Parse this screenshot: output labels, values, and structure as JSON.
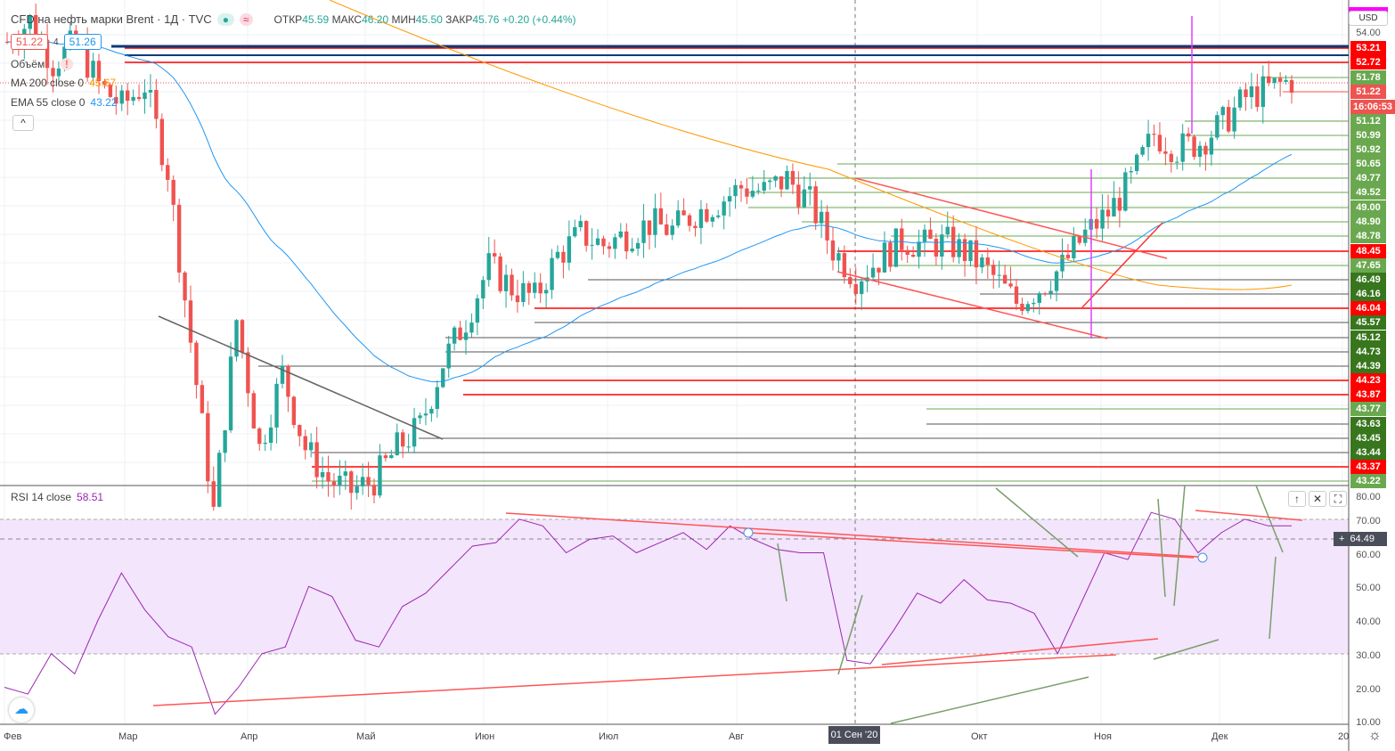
{
  "header": {
    "title": "CFD на нефть марки Brent · 1Д · TVC",
    "open_label": "ОТКР",
    "open": "45.59",
    "high_label": "МАКС",
    "high": "46.20",
    "low_label": "МИН",
    "low": "45.50",
    "close_label": "ЗАКР",
    "close": "45.76",
    "change": "+0.20 (+0.44%)",
    "sell": "51.22",
    "spread": "4",
    "buy": "51.26"
  },
  "legend": {
    "volume": "Объём",
    "volume_warning": "!",
    "ma_label": "MA 200 close 0",
    "ma_value": "45.67",
    "ema_label": "EMA 55 close 0",
    "ema_value": "43.22",
    "collapse": "^"
  },
  "rsi": {
    "label": "RSI 14 close",
    "value": "58.51",
    "current_marker": "64.49",
    "ticks": [
      "80.00",
      "70.00",
      "60.00",
      "50.00",
      "40.00",
      "30.00",
      "20.00",
      "10.00"
    ]
  },
  "price_axis": {
    "currency": "USD",
    "top_label": "54.00",
    "countdown": "16:06:53",
    "levels": [
      {
        "v": "53.21",
        "c": "#ff0000"
      },
      {
        "v": "52.72",
        "c": "#ff0000"
      },
      {
        "v": "51.78",
        "c": "#6aa84f"
      },
      {
        "v": "51.22",
        "c": "#ef5350"
      },
      {
        "v": "51.12",
        "c": "#6aa84f"
      },
      {
        "v": "50.99",
        "c": "#6aa84f"
      },
      {
        "v": "50.92",
        "c": "#6aa84f"
      },
      {
        "v": "50.65",
        "c": "#6aa84f"
      },
      {
        "v": "49.77",
        "c": "#6aa84f"
      },
      {
        "v": "49.52",
        "c": "#6aa84f"
      },
      {
        "v": "49.00",
        "c": "#6aa84f"
      },
      {
        "v": "48.90",
        "c": "#6aa84f"
      },
      {
        "v": "48.78",
        "c": "#6aa84f"
      },
      {
        "v": "48.45",
        "c": "#ff0000"
      },
      {
        "v": "47.65",
        "c": "#6aa84f"
      },
      {
        "v": "46.49",
        "c": "#38761d"
      },
      {
        "v": "46.16",
        "c": "#38761d"
      },
      {
        "v": "46.04",
        "c": "#ff0000"
      },
      {
        "v": "45.57",
        "c": "#38761d"
      },
      {
        "v": "45.12",
        "c": "#38761d"
      },
      {
        "v": "44.73",
        "c": "#38761d"
      },
      {
        "v": "44.39",
        "c": "#38761d"
      },
      {
        "v": "44.23",
        "c": "#ff0000"
      },
      {
        "v": "43.87",
        "c": "#ff0000"
      },
      {
        "v": "43.77",
        "c": "#6aa84f"
      },
      {
        "v": "43.63",
        "c": "#38761d"
      },
      {
        "v": "43.45",
        "c": "#38761d"
      },
      {
        "v": "43.44",
        "c": "#38761d"
      },
      {
        "v": "43.37",
        "c": "#ff0000"
      },
      {
        "v": "43.22",
        "c": "#6aa84f"
      }
    ]
  },
  "time_axis": {
    "labels": [
      "Фев",
      "Мар",
      "Апр",
      "Май",
      "Июн",
      "Июл",
      "Авг",
      "Окт",
      "Ноя",
      "Дек",
      "20"
    ],
    "crosshair": "01 Сен '20"
  },
  "colors": {
    "up": "#26a69a",
    "down": "#ef5350",
    "ma": "#ff9800",
    "ema": "#2196f3",
    "rsi": "#9c27b0"
  },
  "chart_data": {
    "type": "candlestick",
    "approx_closes": [
      52,
      53,
      51,
      52,
      50,
      49,
      50,
      46,
      38,
      30,
      39,
      33,
      36.5,
      33,
      31.5,
      31,
      31.5,
      33,
      34,
      37,
      39,
      41.5,
      40.5,
      40,
      42,
      43,
      42.5,
      43,
      43.5,
      43.2,
      44,
      44.5,
      45.2,
      45,
      45.6,
      44.5,
      42.3,
      41,
      41.8,
      42.7,
      42.5,
      42.6,
      42,
      41,
      39.8,
      40.5,
      41.5,
      43,
      44,
      45.5,
      47.7,
      47,
      47.3,
      48.2,
      49.4,
      49.8,
      50.2
    ],
    "rsi_values": [
      22,
      18,
      28,
      26,
      40,
      52,
      45,
      35,
      30,
      14,
      20,
      28,
      34,
      50,
      45,
      36,
      32,
      42,
      50,
      55,
      60,
      65,
      70,
      66,
      62,
      64,
      63,
      62,
      63,
      64,
      63,
      68,
      62,
      63,
      60,
      58,
      30,
      27,
      35,
      50,
      45,
      50,
      48,
      45,
      40,
      32,
      45,
      58,
      60,
      72,
      68,
      62,
      66,
      68,
      70,
      68
    ]
  }
}
